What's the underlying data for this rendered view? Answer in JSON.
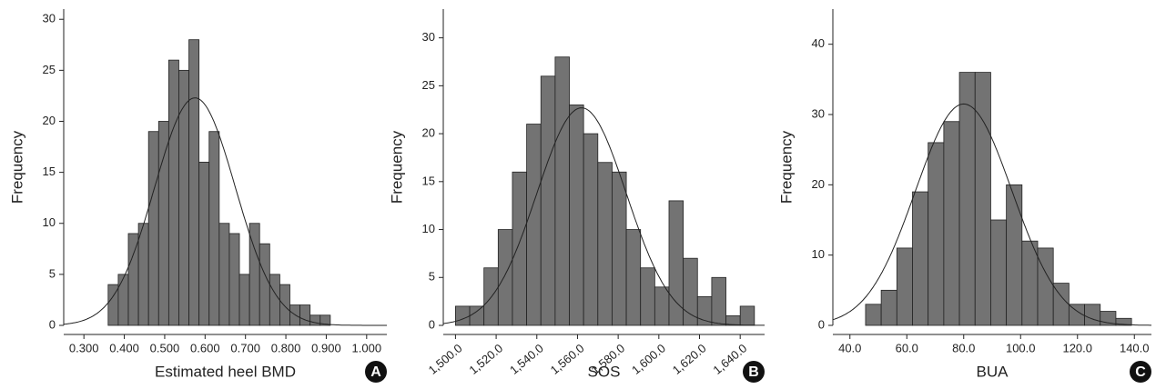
{
  "chart_data": [
    {
      "type": "histogram",
      "panel": "A",
      "xlabel": "Estimated heel BMD",
      "ylabel": "Frequency",
      "color": "#737373",
      "bins": [
        0.36,
        0.385,
        0.41,
        0.435,
        0.46,
        0.485,
        0.51,
        0.535,
        0.56,
        0.585,
        0.61,
        0.635,
        0.66,
        0.685,
        0.71,
        0.735,
        0.76,
        0.785,
        0.81,
        0.835,
        0.86,
        0.885,
        0.91
      ],
      "values": [
        4,
        5,
        9,
        10,
        19,
        20,
        26,
        25,
        28,
        16,
        19,
        10,
        9,
        5,
        10,
        8,
        5,
        4,
        2,
        2,
        1,
        1
      ],
      "curve": {
        "mean": 0.575,
        "sd": 0.1,
        "peak": 22.3
      },
      "xlim": [
        0.25,
        1.05
      ],
      "ylim": [
        0,
        31
      ],
      "xticks": [
        {
          "value": 0.3,
          "label": "0.300"
        },
        {
          "value": 0.4,
          "label": "0.400"
        },
        {
          "value": 0.5,
          "label": "0.500"
        },
        {
          "value": 0.6,
          "label": "0.600"
        },
        {
          "value": 0.7,
          "label": "0.700"
        },
        {
          "value": 0.8,
          "label": "0.800"
        },
        {
          "value": 0.9,
          "label": "0.900"
        },
        {
          "value": 1.0,
          "label": "1.000"
        }
      ],
      "yticks": [
        0,
        5,
        10,
        15,
        20,
        25,
        30
      ]
    },
    {
      "type": "histogram",
      "panel": "B",
      "xlabel": "SOS",
      "ylabel": "Frequency",
      "color": "#737373",
      "bins": [
        1500,
        1507,
        1514,
        1521,
        1528,
        1535,
        1542,
        1549,
        1556,
        1563,
        1570,
        1577,
        1584,
        1591,
        1598,
        1605,
        1612,
        1619,
        1626,
        1633,
        1640,
        1647
      ],
      "values": [
        2,
        2,
        6,
        10,
        16,
        21,
        26,
        28,
        23,
        20,
        17,
        16,
        10,
        6,
        4,
        13,
        7,
        3,
        5,
        1,
        2
      ],
      "curve": {
        "mean": 1562,
        "sd": 22,
        "peak": 22.7
      },
      "xlim": [
        1494,
        1652
      ],
      "ylim": [
        0,
        33
      ],
      "rotate_xticks": true,
      "xticks": [
        {
          "value": 1500,
          "label": "1,500.0"
        },
        {
          "value": 1520,
          "label": "1,520.0"
        },
        {
          "value": 1540,
          "label": "1,540.0"
        },
        {
          "value": 1560,
          "label": "1,560.0"
        },
        {
          "value": 1580,
          "label": "1,580.0"
        },
        {
          "value": 1600,
          "label": "1,600.0"
        },
        {
          "value": 1620,
          "label": "1,620.0"
        },
        {
          "value": 1640,
          "label": "1,640.0"
        }
      ],
      "yticks": [
        0,
        5,
        10,
        15,
        20,
        25,
        30
      ]
    },
    {
      "type": "histogram",
      "panel": "C",
      "xlabel": "BUA",
      "ylabel": "Frequency",
      "color": "#737373",
      "bins": [
        45.5,
        51,
        56.5,
        62,
        67.5,
        73,
        78.5,
        84,
        89.5,
        95,
        100.5,
        106,
        111.5,
        117,
        122.5,
        128,
        133.5,
        139
      ],
      "values": [
        3,
        5,
        11,
        19,
        26,
        29,
        36,
        36,
        15,
        20,
        12,
        11,
        6,
        3,
        3,
        2,
        1
      ],
      "curve": {
        "mean": 80,
        "sd": 17,
        "peak": 31.5
      },
      "xlim": [
        34,
        146
      ],
      "ylim": [
        0,
        45
      ],
      "xticks": [
        {
          "value": 40,
          "label": "40.0"
        },
        {
          "value": 60,
          "label": "60.0"
        },
        {
          "value": 80,
          "label": "80.0"
        },
        {
          "value": 100,
          "label": "100.0"
        },
        {
          "value": 120,
          "label": "120.0"
        },
        {
          "value": 140,
          "label": "140.0"
        }
      ],
      "yticks": [
        0,
        10,
        20,
        30,
        40
      ]
    }
  ]
}
